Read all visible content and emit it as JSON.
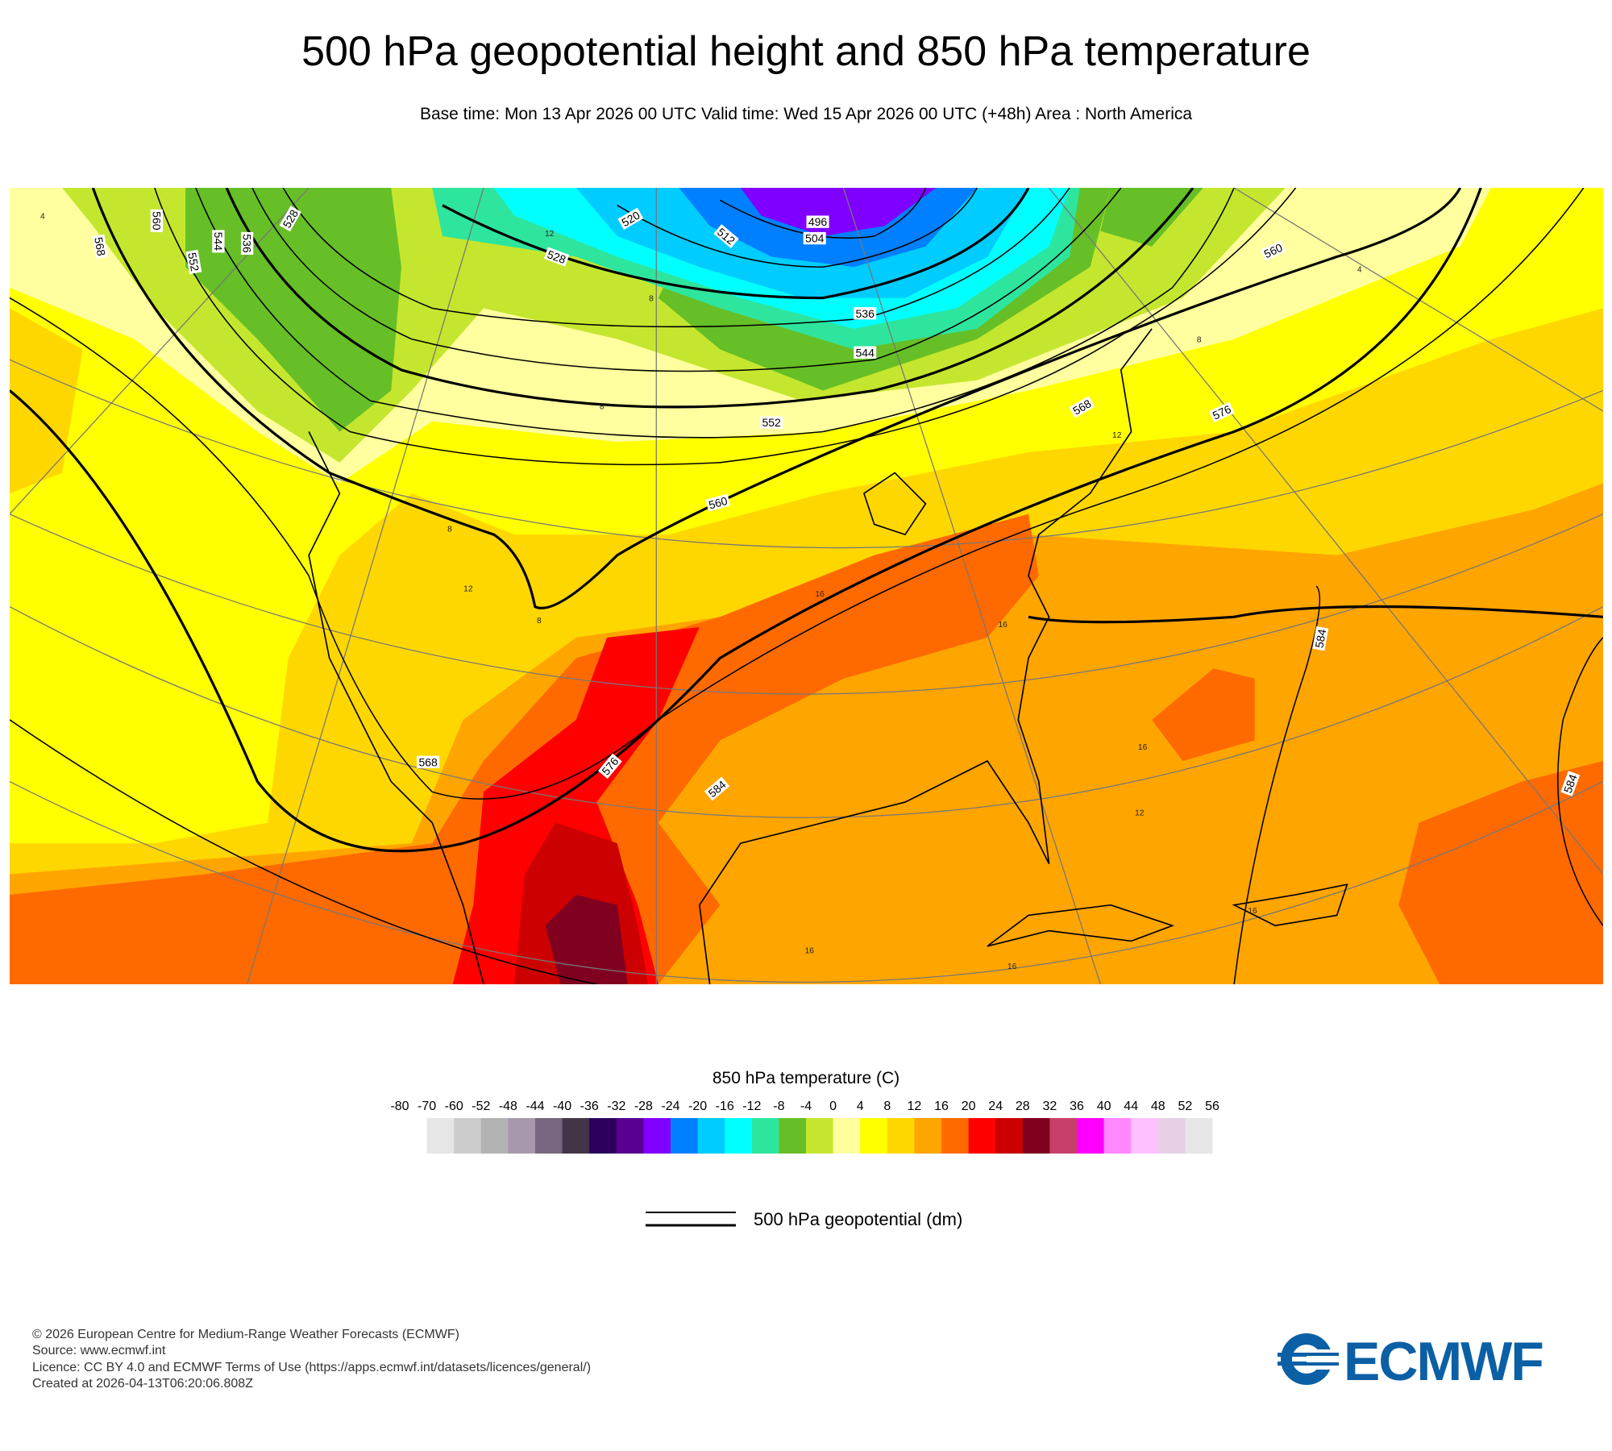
{
  "header": {
    "title": "500 hPa geopotential height and 850 hPa temperature",
    "subtitle": "Base time: Mon 13 Apr 2026 00 UTC Valid time: Wed 15 Apr 2026 00 UTC (+48h) Area : North America"
  },
  "map": {
    "geopotential_labels": [
      568,
      560,
      552,
      544,
      536,
      528,
      520,
      512,
      496,
      504,
      528,
      536,
      544,
      552,
      560,
      560,
      568,
      576,
      568,
      576,
      584,
      584,
      584
    ],
    "temperature_labels": [
      4,
      4,
      8,
      8,
      8,
      12,
      12,
      8,
      16,
      16,
      16,
      12,
      16,
      16,
      16,
      12,
      8
    ]
  },
  "colorbar": {
    "title": "850 hPa temperature (C)",
    "levels": [
      -80,
      -70,
      -60,
      -52,
      -48,
      -44,
      -40,
      -36,
      -32,
      -28,
      -24,
      -20,
      -16,
      -12,
      -8,
      -4,
      0,
      4,
      8,
      12,
      16,
      20,
      24,
      28,
      32,
      36,
      40,
      44,
      48,
      52,
      56
    ],
    "colors": [
      "#ffffff",
      "#e6e6e6",
      "#cccccc",
      "#b3b3b3",
      "#a898ad",
      "#78657f",
      "#433447",
      "#2c005c",
      "#5a0090",
      "#7f00ff",
      "#0080ff",
      "#00ccff",
      "#00ffff",
      "#2ee59e",
      "#66bf26",
      "#c5e62e",
      "#ffff9f",
      "#ffff00",
      "#ffd700",
      "#ffa500",
      "#ff6a00",
      "#ff0000",
      "#cc0000",
      "#800020",
      "#c8406a",
      "#ff00ff",
      "#ff88ff",
      "#ffc0ff",
      "#e6d0e6",
      "#e6e6e6"
    ]
  },
  "legend": {
    "label": "500 hPa geopotential (dm)"
  },
  "footer": {
    "lines": [
      "© 2026 European Centre for Medium-Range Weather Forecasts (ECMWF)",
      "Source: www.ecmwf.int",
      "Licence: CC BY 4.0 and ECMWF Terms of Use (https://apps.ecmwf.int/datasets/licences/general/)",
      "Created at 2026-04-13T06:20:06.808Z"
    ]
  },
  "logo": {
    "text": "ECMWF"
  }
}
